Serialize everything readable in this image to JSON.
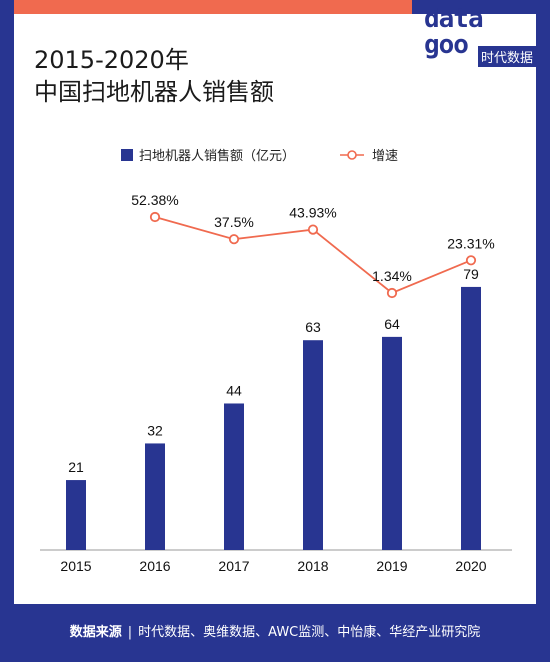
{
  "header": {
    "title_line1": "2015-2020年",
    "title_line2": "中国扫地机器人销售额"
  },
  "brand": {
    "data": "data",
    "good": "goo",
    "tag": "时代数据"
  },
  "footer": {
    "source_label": "数据来源",
    "separator": "|",
    "sources": "时代数据、奥维数据、AWC监测、中怡康、华经产业研究院"
  },
  "colors": {
    "bar": "#283591",
    "line": "#f06a4f",
    "frame": "#283591",
    "accent": "#f06a4f"
  },
  "chart_data": {
    "type": "bar",
    "title": "2015-2020年中国扫地机器人销售额",
    "categories": [
      "2015",
      "2016",
      "2017",
      "2018",
      "2019",
      "2020"
    ],
    "series": [
      {
        "name": "扫地机器人销售额（亿元）",
        "type": "bar",
        "values": [
          21,
          32,
          44,
          63,
          64,
          79
        ],
        "labels": [
          "21",
          "32",
          "44",
          "63",
          "64",
          "79"
        ]
      },
      {
        "name": "增速",
        "type": "line",
        "values": [
          null,
          52.38,
          37.5,
          43.93,
          1.34,
          23.31
        ],
        "labels": [
          "",
          "52.38%",
          "37.5%",
          "43.93%",
          "1.34%",
          "23.31%"
        ]
      }
    ],
    "legend_position": "top",
    "grid": false
  }
}
